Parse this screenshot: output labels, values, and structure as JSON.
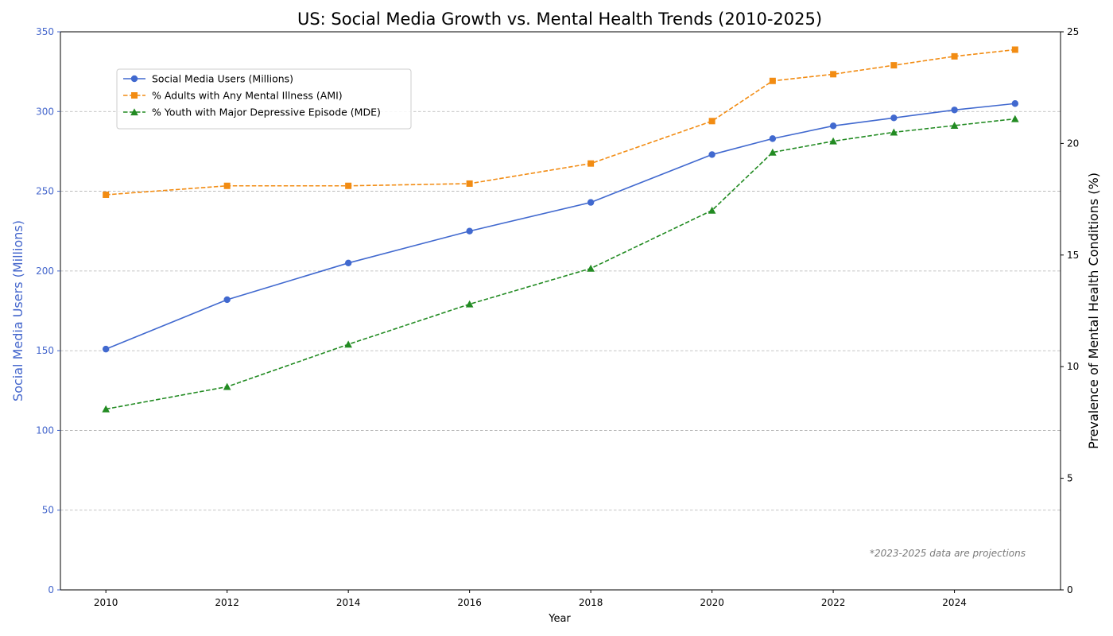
{
  "chart_data": {
    "type": "line",
    "title": "US: Social Media Growth vs. Mental Health Trends (2010-2025)",
    "xlabel": "Year",
    "ylabel_left": "Social Media Users (Millions)",
    "ylabel_right": "Prevalence of Mental Health Conditions (%)",
    "annotation": "*2023-2025 data are projections",
    "x": [
      2010,
      2012,
      2014,
      2016,
      2018,
      2020,
      2021,
      2022,
      2023,
      2024,
      2025
    ],
    "x_ticks": [
      2010,
      2012,
      2014,
      2016,
      2018,
      2020,
      2022,
      2024
    ],
    "xlim": [
      2009.25,
      2025.75
    ],
    "ylim_left": [
      0,
      350
    ],
    "y_ticks_left": [
      0,
      50,
      100,
      150,
      200,
      250,
      300,
      350
    ],
    "ylim_right": [
      0,
      25
    ],
    "y_ticks_right": [
      0,
      5,
      10,
      15,
      20,
      25
    ],
    "grid": "horizontal-dashed",
    "legend_position": "upper-left",
    "colors": {
      "left_axis": "#4466cc",
      "right_axis": "#000000"
    },
    "series": [
      {
        "name": "Social Media Users (Millions)",
        "axis": "left",
        "color": "#4169cf",
        "linestyle": "solid",
        "marker": "circle",
        "values": [
          151,
          182,
          205,
          225,
          243,
          273,
          283,
          291,
          296,
          301,
          305
        ]
      },
      {
        "name": "% Adults with Any Mental Illness (AMI)",
        "axis": "right",
        "color": "#f28c13",
        "linestyle": "dashed",
        "marker": "square",
        "values": [
          17.7,
          18.1,
          18.1,
          18.2,
          19.1,
          21.0,
          22.8,
          23.1,
          23.5,
          23.9,
          24.2
        ]
      },
      {
        "name": "% Youth with Major Depressive Episode (MDE)",
        "axis": "right",
        "color": "#228b22",
        "linestyle": "dashed",
        "marker": "triangle",
        "values": [
          8.1,
          9.1,
          11.0,
          12.8,
          14.4,
          17.0,
          19.6,
          20.1,
          20.5,
          20.8,
          21.1
        ]
      }
    ]
  }
}
